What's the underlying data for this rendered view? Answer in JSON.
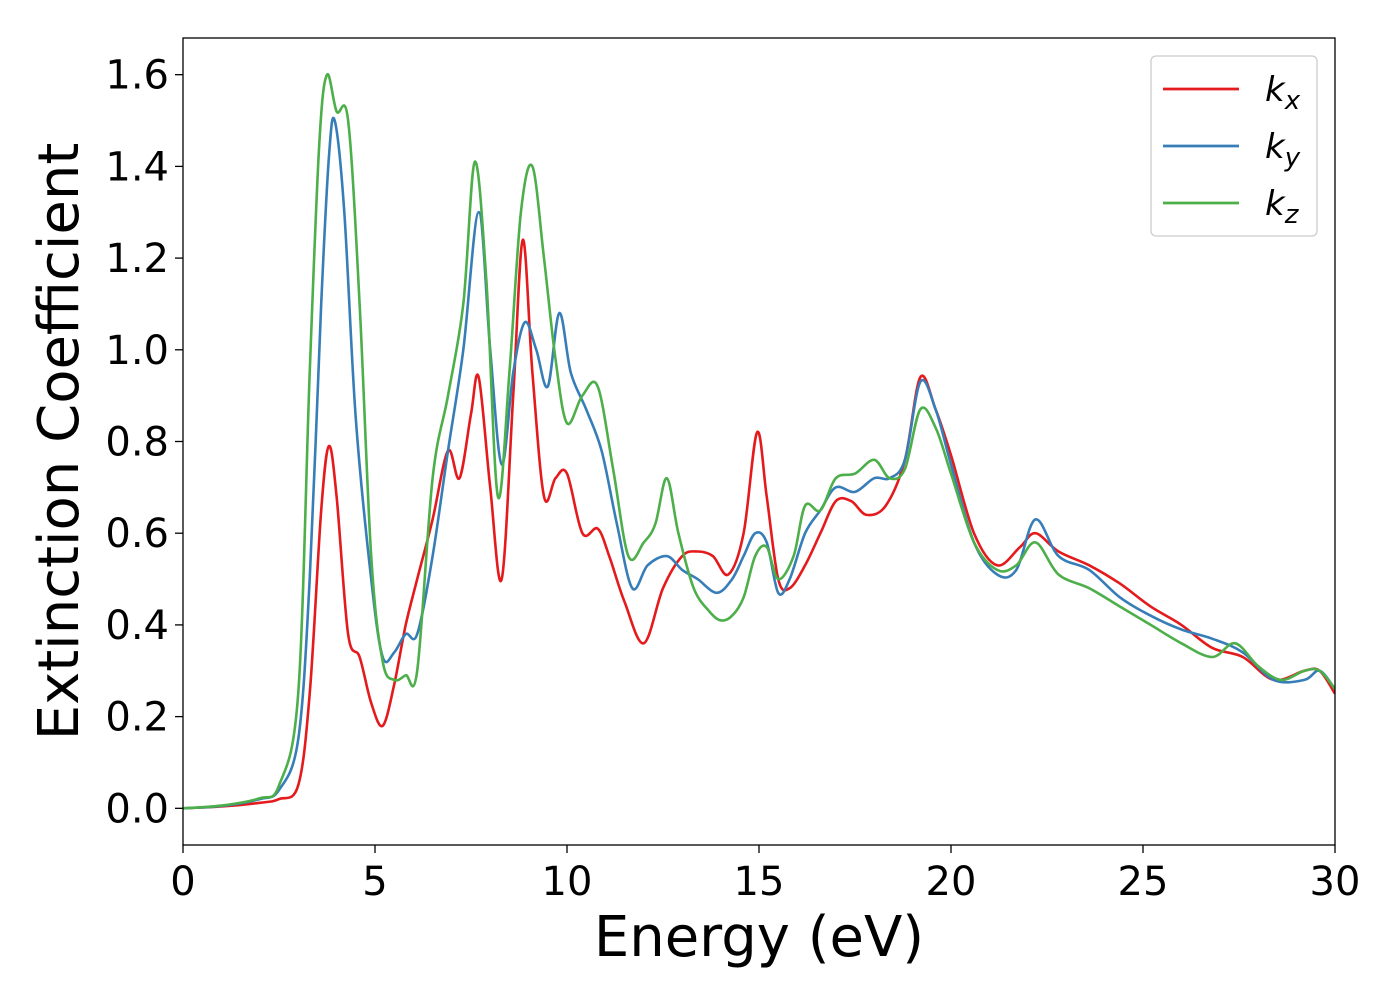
{
  "chart_data": {
    "type": "line",
    "xlabel": "Energy (eV)",
    "ylabel": "Extinction Coefficient",
    "xlim": [
      0,
      30
    ],
    "ylim": [
      -0.08,
      1.68
    ],
    "xticks": [
      0,
      5,
      10,
      15,
      20,
      25,
      30
    ],
    "xtick_labels": [
      "0",
      "5",
      "10",
      "15",
      "20",
      "25",
      "30"
    ],
    "yticks": [
      0.0,
      0.2,
      0.4,
      0.6,
      0.8,
      1.0,
      1.2,
      1.4,
      1.6
    ],
    "ytick_labels": [
      "0.0",
      "0.2",
      "0.4",
      "0.6",
      "0.8",
      "1.0",
      "1.2",
      "1.4",
      "1.6"
    ],
    "grid": false,
    "legend_position": "top-right",
    "series": [
      {
        "name": "k_x",
        "label_main": "k",
        "label_sub": "x",
        "color": "#e41a1c",
        "x": [
          0,
          1,
          2,
          2.5,
          3.0,
          3.3,
          3.6,
          3.8,
          4.0,
          4.3,
          4.6,
          4.9,
          5.2,
          5.5,
          5.8,
          6.1,
          6.5,
          6.9,
          7.2,
          7.5,
          7.7,
          8.0,
          8.3,
          8.6,
          8.85,
          9.1,
          9.4,
          9.7,
          10.0,
          10.4,
          10.8,
          11.1,
          11.5,
          12.0,
          12.5,
          13.0,
          13.4,
          13.8,
          14.2,
          14.6,
          14.95,
          15.2,
          15.5,
          15.8,
          16.2,
          16.6,
          17.0,
          17.4,
          17.8,
          18.3,
          18.8,
          19.2,
          19.6,
          20.0,
          20.6,
          21.2,
          21.8,
          22.2,
          22.8,
          23.6,
          24.4,
          25.2,
          26.0,
          26.8,
          27.6,
          28.4,
          29.2,
          29.6,
          30
        ],
        "values": [
          0,
          0.004,
          0.012,
          0.02,
          0.05,
          0.25,
          0.65,
          0.79,
          0.68,
          0.38,
          0.33,
          0.23,
          0.18,
          0.27,
          0.4,
          0.5,
          0.63,
          0.78,
          0.72,
          0.86,
          0.94,
          0.7,
          0.5,
          0.9,
          1.24,
          0.95,
          0.68,
          0.72,
          0.73,
          0.6,
          0.61,
          0.55,
          0.45,
          0.36,
          0.48,
          0.55,
          0.56,
          0.55,
          0.51,
          0.6,
          0.82,
          0.68,
          0.5,
          0.48,
          0.53,
          0.6,
          0.67,
          0.67,
          0.64,
          0.66,
          0.76,
          0.94,
          0.87,
          0.77,
          0.6,
          0.53,
          0.57,
          0.6,
          0.56,
          0.53,
          0.49,
          0.44,
          0.4,
          0.35,
          0.33,
          0.28,
          0.3,
          0.3,
          0.25
        ]
      },
      {
        "name": "k_y",
        "label_main": "k",
        "label_sub": "y",
        "color": "#377eb8",
        "x": [
          0,
          1,
          2,
          2.5,
          3.0,
          3.3,
          3.6,
          3.8,
          3.95,
          4.2,
          4.5,
          4.9,
          5.2,
          5.5,
          5.8,
          6.1,
          6.5,
          6.9,
          7.3,
          7.7,
          8.0,
          8.3,
          8.6,
          8.9,
          9.2,
          9.5,
          9.8,
          10.1,
          10.5,
          10.9,
          11.3,
          11.7,
          12.1,
          12.6,
          13.0,
          13.4,
          13.9,
          14.3,
          14.6,
          14.9,
          15.2,
          15.5,
          15.8,
          16.2,
          16.6,
          17.0,
          17.5,
          18.0,
          18.4,
          18.8,
          19.2,
          19.6,
          20.0,
          20.6,
          21.2,
          21.7,
          22.2,
          22.8,
          23.6,
          24.4,
          25.2,
          26.0,
          26.8,
          27.6,
          28.4,
          29.2,
          29.6,
          30
        ],
        "values": [
          0,
          0.005,
          0.02,
          0.04,
          0.15,
          0.5,
          1.1,
          1.42,
          1.5,
          1.3,
          0.85,
          0.5,
          0.33,
          0.34,
          0.38,
          0.38,
          0.55,
          0.78,
          1.0,
          1.3,
          1.0,
          0.75,
          0.95,
          1.06,
          1.0,
          0.92,
          1.08,
          0.95,
          0.87,
          0.78,
          0.62,
          0.48,
          0.53,
          0.55,
          0.52,
          0.5,
          0.47,
          0.5,
          0.55,
          0.6,
          0.58,
          0.47,
          0.5,
          0.6,
          0.65,
          0.7,
          0.69,
          0.72,
          0.72,
          0.76,
          0.93,
          0.87,
          0.75,
          0.58,
          0.51,
          0.52,
          0.63,
          0.55,
          0.52,
          0.46,
          0.42,
          0.39,
          0.37,
          0.34,
          0.28,
          0.28,
          0.3,
          0.26
        ]
      },
      {
        "name": "k_z",
        "label_main": "k",
        "label_sub": "z",
        "color": "#4daf4a",
        "x": [
          0,
          1,
          2,
          2.5,
          3.0,
          3.3,
          3.55,
          3.75,
          4.0,
          4.3,
          4.6,
          4.9,
          5.2,
          5.5,
          5.8,
          6.1,
          6.5,
          6.9,
          7.3,
          7.6,
          7.9,
          8.2,
          8.5,
          8.8,
          9.1,
          9.4,
          9.7,
          10.0,
          10.4,
          10.8,
          11.2,
          11.6,
          12.0,
          12.3,
          12.6,
          12.9,
          13.3,
          13.7,
          14.0,
          14.3,
          14.6,
          14.9,
          15.2,
          15.5,
          15.9,
          16.2,
          16.6,
          17.0,
          17.5,
          18.0,
          18.4,
          18.8,
          19.2,
          19.6,
          20.0,
          20.6,
          21.2,
          21.7,
          22.2,
          22.8,
          23.6,
          24.4,
          25.2,
          26.0,
          26.8,
          27.4,
          28.0,
          28.6,
          29.2,
          29.6,
          30
        ],
        "values": [
          0,
          0.006,
          0.022,
          0.05,
          0.25,
          0.95,
          1.45,
          1.6,
          1.52,
          1.5,
          1.1,
          0.55,
          0.32,
          0.28,
          0.29,
          0.3,
          0.72,
          0.9,
          1.1,
          1.41,
          1.15,
          0.68,
          0.95,
          1.3,
          1.4,
          1.2,
          0.98,
          0.84,
          0.9,
          0.92,
          0.74,
          0.55,
          0.58,
          0.62,
          0.72,
          0.6,
          0.48,
          0.43,
          0.41,
          0.42,
          0.46,
          0.55,
          0.57,
          0.5,
          0.55,
          0.66,
          0.65,
          0.72,
          0.73,
          0.76,
          0.72,
          0.74,
          0.87,
          0.83,
          0.73,
          0.58,
          0.52,
          0.53,
          0.58,
          0.51,
          0.48,
          0.44,
          0.4,
          0.36,
          0.33,
          0.36,
          0.31,
          0.28,
          0.3,
          0.3,
          0.26
        ]
      }
    ]
  }
}
